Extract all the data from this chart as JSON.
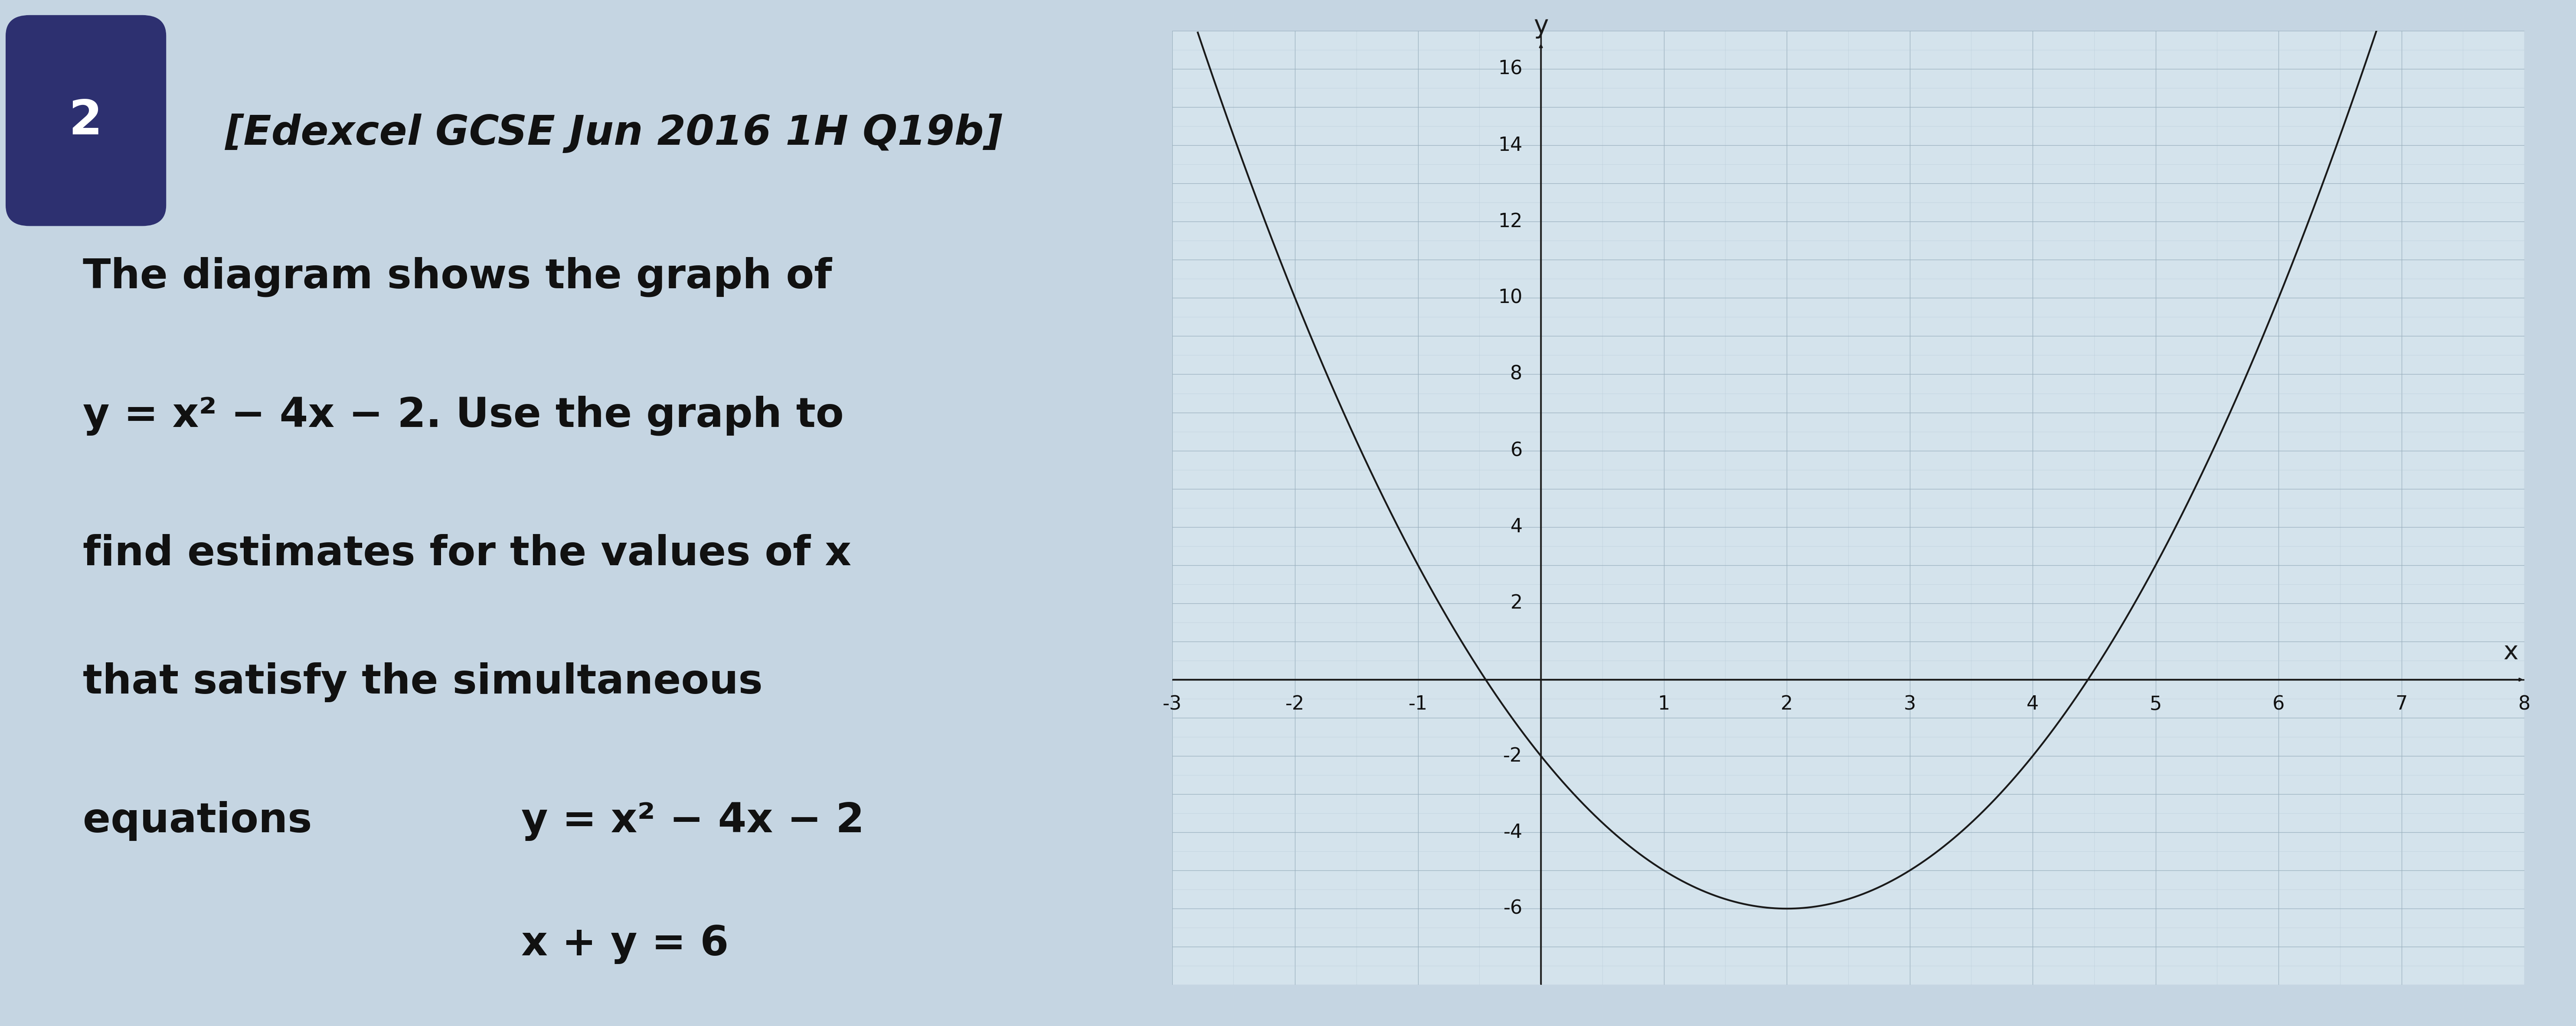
{
  "background_color": "#c5d5e2",
  "graph_bg_color": "#d4e3ec",
  "grid_major_color": "#9ab0be",
  "grid_minor_color": "#b5c8d5",
  "curve_color": "#1a1a1a",
  "axis_color": "#1a1a1a",
  "badge_color": "#2d3070",
  "badge_text": "2",
  "badge_text_color": "#ffffff",
  "title_line1": "[Edexcel GCSE Jun 2016 1H Q19b]",
  "title_line2": "The diagram shows the graph of",
  "title_line3": "y = x² − 4x − 2. Use the graph to",
  "title_line4": "find estimates for the values of x",
  "title_line5": "that satisfy the simultaneous",
  "title_line6_label": "equations",
  "title_line6_eq": "y = x² − 4x − 2",
  "title_line7_eq": "x + y = 6",
  "x_min": -3,
  "x_max": 8,
  "y_min": -8,
  "y_max": 17,
  "x_ticks_labeled": [
    -3,
    -2,
    -1,
    1,
    2,
    3,
    4,
    5,
    6,
    7,
    8
  ],
  "y_ticks_labeled": [
    -6,
    -4,
    -2,
    2,
    4,
    6,
    8,
    10,
    12,
    14,
    16
  ],
  "font_size_title": 68,
  "font_size_badge": 80,
  "font_size_axis_tick": 32,
  "font_size_axis_label": 42
}
